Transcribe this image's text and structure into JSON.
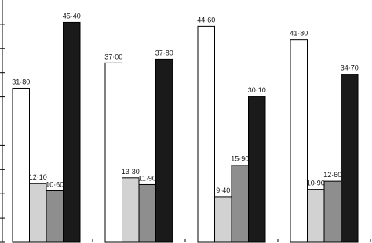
{
  "chart_data": {
    "type": "bar",
    "categories": [
      null,
      null,
      null,
      null
    ],
    "series": [
      {
        "color": "#ffffff",
        "values": [
          31.8,
          37.0,
          44.6,
          41.8
        ],
        "value_labels": [
          "31·80",
          "37·00",
          "44·60",
          "41·80"
        ]
      },
      {
        "color": "#d2d2d2",
        "values": [
          12.1,
          13.3,
          9.4,
          10.9
        ],
        "value_labels": [
          "12·10",
          "13·30",
          "9·40",
          "10·90"
        ]
      },
      {
        "color": "#8e8e8e",
        "values": [
          10.6,
          11.9,
          15.9,
          12.6
        ],
        "value_labels": [
          "10·60",
          "11·90",
          "15·90",
          "12·60"
        ]
      },
      {
        "color": "#1a1a1a",
        "values": [
          45.4,
          37.8,
          30.1,
          34.7
        ],
        "value_labels": [
          "45·40",
          "37·80",
          "30·10",
          "34·70"
        ]
      }
    ],
    "ylim": [
      0,
      50
    ],
    "yticks": [
      0,
      5,
      10,
      15,
      20,
      25,
      30,
      35,
      40,
      45
    ]
  }
}
